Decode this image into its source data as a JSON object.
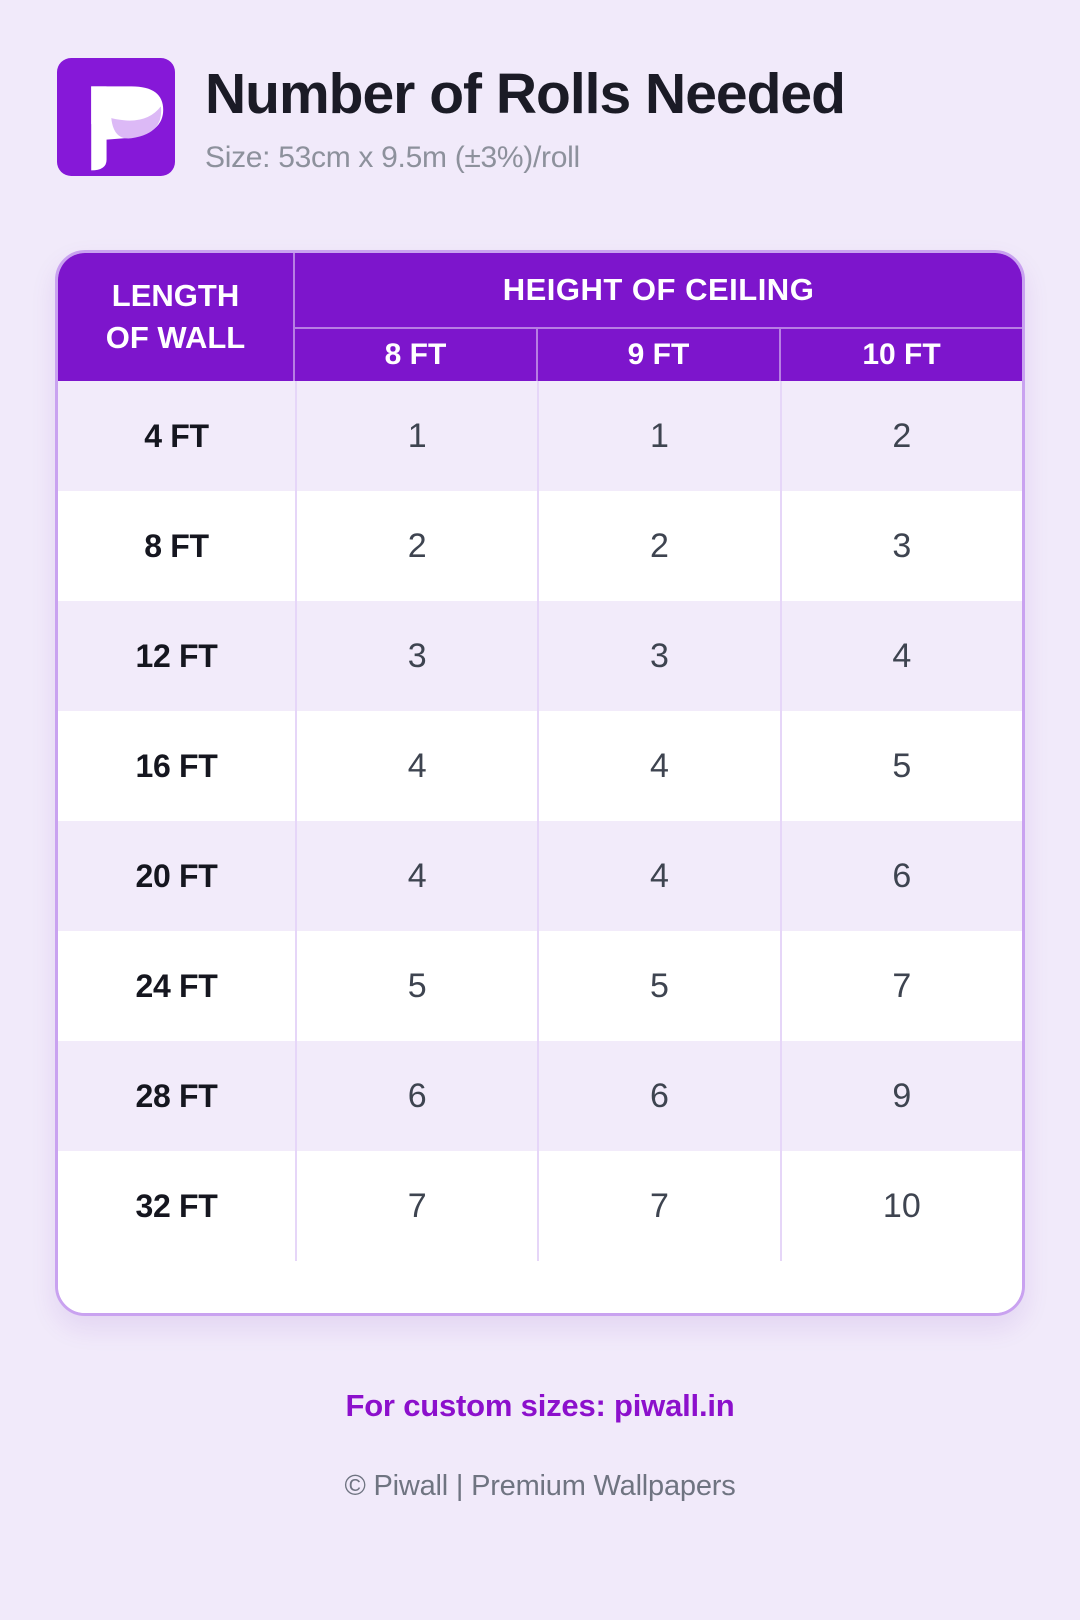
{
  "theme": {
    "page_background": "#f1eafa",
    "header_purple": "#7d15cc",
    "logo_purple": "#8618d8",
    "row_shade": "#f2ebfa",
    "cell_divider": "#e6d6f8",
    "card_border": "#c9a2f0",
    "accent_link": "#8c10cc"
  },
  "header": {
    "logo_icon": "piwall-logo"
  },
  "chart_data": {
    "type": "table",
    "title": "Number of Rolls Needed",
    "subtitle": "Size: 53cm x 9.5m (±3%)/roll",
    "row_axis_label": "LENGTH OF WALL",
    "row_axis_label_lines": [
      "LENGTH",
      "OF WALL"
    ],
    "column_group_label": "HEIGHT OF CEILING",
    "columns": [
      "8 FT",
      "9 FT",
      "10 FT"
    ],
    "rows": [
      {
        "label": "4 FT",
        "values": [
          "1",
          "1",
          "2"
        ]
      },
      {
        "label": "8 FT",
        "values": [
          "2",
          "2",
          "3"
        ]
      },
      {
        "label": "12 FT",
        "values": [
          "3",
          "3",
          "4"
        ]
      },
      {
        "label": "16 FT",
        "values": [
          "4",
          "4",
          "5"
        ]
      },
      {
        "label": "20 FT",
        "values": [
          "4",
          "4",
          "6"
        ]
      },
      {
        "label": "24 FT",
        "values": [
          "5",
          "5",
          "7"
        ]
      },
      {
        "label": "28 FT",
        "values": [
          "6",
          "6",
          "9"
        ]
      },
      {
        "label": "32 FT",
        "values": [
          "7",
          "7",
          "10"
        ]
      }
    ]
  },
  "footer": {
    "custom_sizes_text": "For custom sizes: piwall.in",
    "copyright": "© Piwall | Premium Wallpapers"
  }
}
